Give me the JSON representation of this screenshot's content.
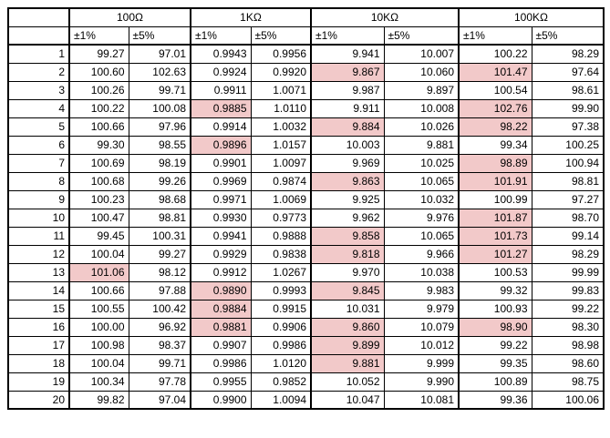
{
  "table": {
    "groups": [
      "100Ω",
      "1KΩ",
      "10KΩ",
      "100KΩ"
    ],
    "subheaders": [
      "±1%",
      "±5%",
      "±1%",
      "±5%",
      "±1%",
      "±5%",
      "±1%",
      "±5%"
    ],
    "highlight_color": "#f2c9c9",
    "rows": [
      [
        "1",
        "99.27",
        "97.01",
        "0.9943",
        "0.9956",
        "9.941",
        "10.007",
        "100.22",
        "98.29"
      ],
      [
        "2",
        "100.60",
        "102.63",
        "0.9924",
        "0.9920",
        {
          "text": "9.867",
          "highlight": true
        },
        "10.060",
        {
          "text": "101.47",
          "highlight": true
        },
        "97.64"
      ],
      [
        "3",
        "100.26",
        "99.71",
        "0.9911",
        "1.0071",
        "9.987",
        "9.897",
        "100.54",
        "98.61"
      ],
      [
        "4",
        "100.22",
        "100.08",
        {
          "text": "0.9885",
          "highlight": true
        },
        "1.0110",
        "9.911",
        "10.008",
        {
          "text": "102.76",
          "highlight": true
        },
        "99.90"
      ],
      [
        "5",
        "100.66",
        "97.96",
        "0.9914",
        "1.0032",
        {
          "text": "9.884",
          "highlight": true
        },
        "10.026",
        {
          "text": "98.22",
          "highlight": true
        },
        "97.38"
      ],
      [
        "6",
        "99.30",
        "98.55",
        {
          "text": "0.9896",
          "highlight": true
        },
        "1.0157",
        "10.003",
        "9.881",
        "99.34",
        "100.25"
      ],
      [
        "7",
        "100.69",
        "98.19",
        "0.9901",
        "1.0097",
        "9.969",
        "10.025",
        {
          "text": "98.89",
          "highlight": true
        },
        "100.94"
      ],
      [
        "8",
        "100.68",
        "99.26",
        "0.9969",
        "0.9874",
        {
          "text": "9.863",
          "highlight": true
        },
        "10.065",
        {
          "text": "101.91",
          "highlight": true
        },
        "98.81"
      ],
      [
        "9",
        "100.23",
        "98.68",
        "0.9971",
        "1.0069",
        "9.925",
        "10.032",
        "100.99",
        "97.27"
      ],
      [
        "10",
        "100.47",
        "98.81",
        "0.9930",
        "0.9773",
        "9.962",
        "9.976",
        {
          "text": "101.87",
          "highlight": true
        },
        "98.70"
      ],
      [
        "11",
        "99.45",
        "100.31",
        "0.9941",
        "0.9888",
        {
          "text": "9.858",
          "highlight": true
        },
        "10.065",
        {
          "text": "101.73",
          "highlight": true
        },
        "99.14"
      ],
      [
        "12",
        "100.04",
        "99.27",
        "0.9929",
        "0.9838",
        {
          "text": "9.818",
          "highlight": true
        },
        "9.966",
        {
          "text": "101.27",
          "highlight": true
        },
        "98.29"
      ],
      [
        "13",
        {
          "text": "101.06",
          "highlight": true
        },
        "98.12",
        "0.9912",
        "1.0267",
        "9.970",
        "10.038",
        "100.53",
        "99.99"
      ],
      [
        "14",
        "100.66",
        "97.88",
        {
          "text": "0.9890",
          "highlight": true
        },
        "0.9993",
        {
          "text": "9.845",
          "highlight": true
        },
        "9.983",
        "99.32",
        "99.83"
      ],
      [
        "15",
        "100.55",
        "100.42",
        {
          "text": "0.9884",
          "highlight": true
        },
        "0.9915",
        "10.031",
        "9.979",
        "100.93",
        "99.22"
      ],
      [
        "16",
        "100.00",
        "96.92",
        {
          "text": "0.9881",
          "highlight": true
        },
        "0.9906",
        {
          "text": "9.860",
          "highlight": true
        },
        "10.079",
        {
          "text": "98.90",
          "highlight": true
        },
        "98.30"
      ],
      [
        "17",
        "100.98",
        "98.37",
        "0.9907",
        "0.9986",
        {
          "text": "9.899",
          "highlight": true
        },
        "10.012",
        "99.22",
        "98.98"
      ],
      [
        "18",
        "100.04",
        "99.71",
        "0.9986",
        "1.0120",
        {
          "text": "9.881",
          "highlight": true
        },
        "9.999",
        "99.35",
        "98.60"
      ],
      [
        "19",
        "100.34",
        "97.78",
        "0.9955",
        "0.9852",
        "10.052",
        "9.990",
        "100.89",
        "98.75"
      ],
      [
        "20",
        "99.82",
        "97.04",
        "0.9900",
        "1.0094",
        "10.047",
        "10.081",
        "99.36",
        "100.06"
      ]
    ]
  }
}
